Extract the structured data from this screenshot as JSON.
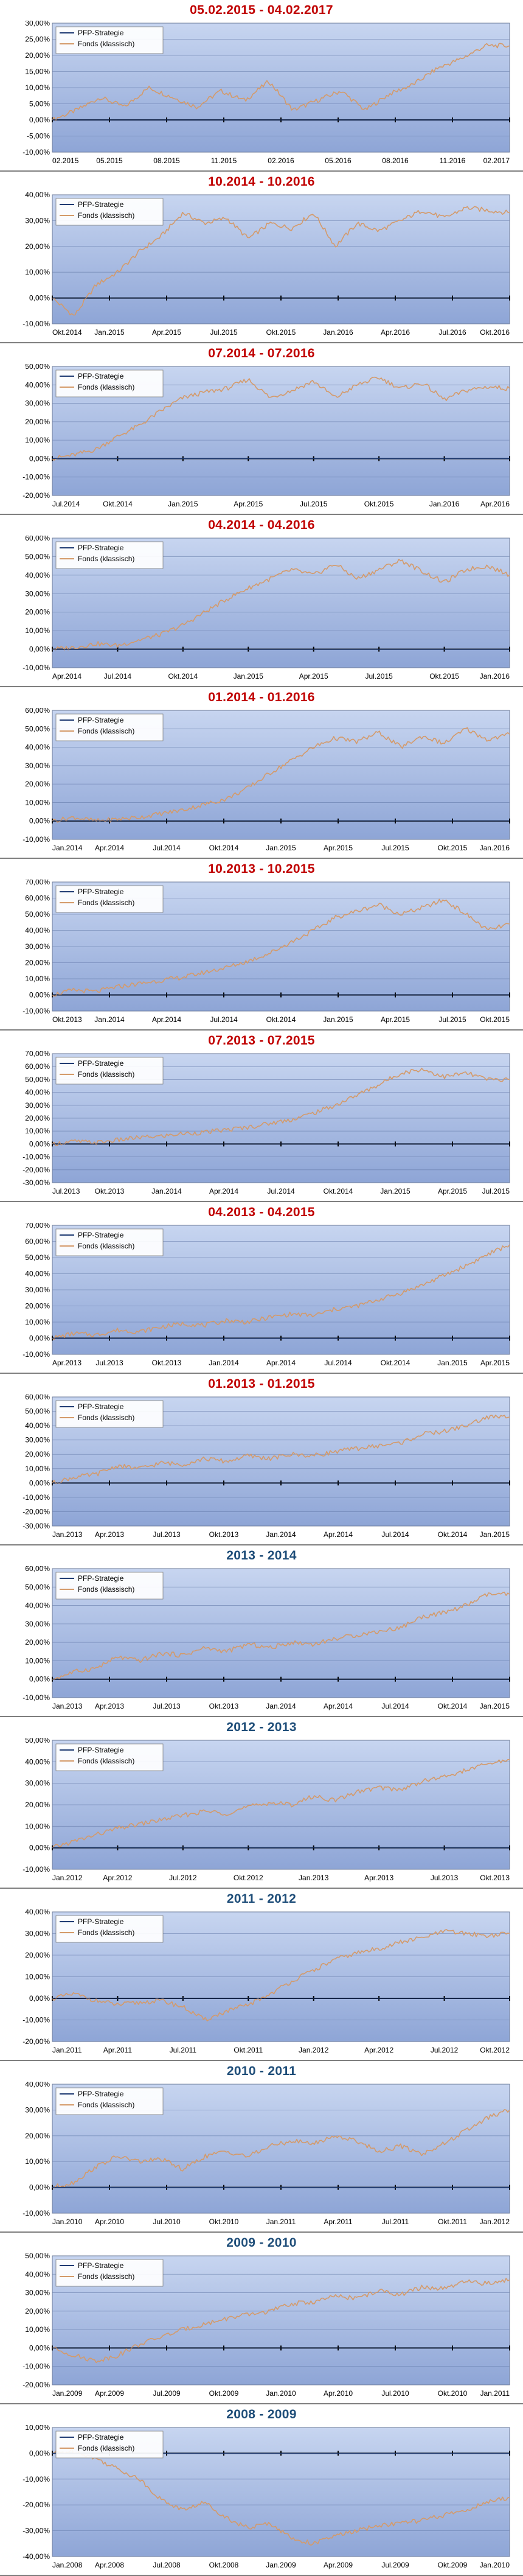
{
  "colors": {
    "title_red": "#c00000",
    "title_blue": "#1f4e79",
    "series_strategy": "#1f3b73",
    "series_fund": "#d49a6a",
    "plot_background_top": "#c7d5f0",
    "plot_background_bottom": "#8ea5d6",
    "gridline": "#5a6fa0",
    "zero_axis": "#000000"
  },
  "legend": {
    "placement": "top-left"
  },
  "chart_data": [
    {
      "type": "line",
      "title": "05.02.2015 - 04.02.2017",
      "title_color": "red",
      "ylim": [
        -10,
        30
      ],
      "ystep": 5,
      "xticks": [
        "02.2015",
        "05.2015",
        "08.2015",
        "11.2015",
        "02.2016",
        "05.2016",
        "08.2016",
        "11.2016",
        "02.2017"
      ],
      "series": [
        {
          "name": "PFP-Strategie",
          "values": [
            0,
            0,
            0,
            0,
            0,
            0,
            0,
            0,
            0
          ]
        },
        {
          "name": "Fonds (klassisch)",
          "values": [
            0,
            3,
            7,
            4,
            10,
            7,
            4,
            9,
            6,
            12,
            3,
            6,
            9,
            3,
            8,
            11,
            16,
            19,
            23,
            23
          ]
        }
      ]
    },
    {
      "type": "line",
      "title": "10.2014 - 10.2016",
      "title_color": "red",
      "ylim": [
        -10,
        40
      ],
      "ystep": 10,
      "xticks": [
        "Okt.2014",
        "Jan.2015",
        "Apr.2015",
        "Jul.2015",
        "Okt.2015",
        "Jan.2016",
        "Apr.2016",
        "Jul.2016",
        "Okt.2016"
      ],
      "series": [
        {
          "name": "PFP-Strategie",
          "values": [
            0,
            0,
            0,
            0,
            0,
            0,
            0,
            0,
            0
          ]
        },
        {
          "name": "Fonds (klassisch)",
          "values": [
            0,
            -7,
            5,
            10,
            18,
            24,
            33,
            29,
            31,
            23,
            29,
            27,
            33,
            20,
            29,
            26,
            30,
            34,
            31,
            35,
            34,
            33
          ]
        }
      ]
    },
    {
      "type": "line",
      "title": "07.2014 - 07.2016",
      "title_color": "red",
      "ylim": [
        -20,
        50
      ],
      "ystep": 10,
      "xticks": [
        "Jul.2014",
        "Okt.2014",
        "Jan.2015",
        "Apr.2015",
        "Jul.2015",
        "Okt.2015",
        "Jan.2016",
        "Apr.2016"
      ],
      "series": [
        {
          "name": "PFP-Strategie",
          "values": [
            0,
            0,
            0,
            0,
            0,
            0,
            0,
            0,
            0
          ]
        },
        {
          "name": "Fonds (klassisch)",
          "values": [
            0,
            2,
            5,
            12,
            18,
            26,
            33,
            36,
            38,
            43,
            33,
            37,
            42,
            33,
            40,
            44,
            38,
            41,
            32,
            37,
            39,
            38
          ]
        }
      ]
    },
    {
      "type": "line",
      "title": "04.2014 - 04.2016",
      "title_color": "red",
      "ylim": [
        -10,
        60
      ],
      "ystep": 10,
      "xticks": [
        "Apr.2014",
        "Jul.2014",
        "Okt.2014",
        "Jan.2015",
        "Apr.2015",
        "Jul.2015",
        "Okt.2015",
        "Jan.2016"
      ],
      "series": [
        {
          "name": "PFP-Strategie",
          "values": [
            0,
            0,
            0,
            0,
            0,
            0,
            0,
            0,
            0
          ]
        },
        {
          "name": "Fonds (klassisch)",
          "values": [
            0,
            1,
            3,
            2,
            5,
            8,
            13,
            20,
            27,
            33,
            38,
            43,
            40,
            46,
            38,
            43,
            48,
            42,
            36,
            43,
            45,
            40
          ]
        }
      ]
    },
    {
      "type": "line",
      "title": "01.2014 - 01.2016",
      "title_color": "red",
      "ylim": [
        -10,
        60
      ],
      "ystep": 10,
      "xticks": [
        "Jan.2014",
        "Apr.2014",
        "Jul.2014",
        "Okt.2014",
        "Jan.2015",
        "Apr.2015",
        "Jul.2015",
        "Okt.2015",
        "Jan.2016"
      ],
      "series": [
        {
          "name": "PFP-Strategie",
          "values": [
            0,
            0,
            0,
            0,
            0,
            0,
            0,
            0,
            0
          ]
        },
        {
          "name": "Fonds (klassisch)",
          "values": [
            0,
            2,
            0,
            1,
            2,
            4,
            6,
            9,
            12,
            18,
            26,
            33,
            40,
            45,
            43,
            48,
            40,
            46,
            42,
            50,
            44,
            47
          ]
        }
      ]
    },
    {
      "type": "line",
      "title": "10.2013 - 10.2015",
      "title_color": "red",
      "ylim": [
        -10,
        70
      ],
      "ystep": 10,
      "xticks": [
        "Okt.2013",
        "Jan.2014",
        "Apr.2014",
        "Jul.2014",
        "Okt.2014",
        "Jan.2015",
        "Apr.2015",
        "Jul.2015",
        "Okt.2015"
      ],
      "series": [
        {
          "name": "PFP-Strategie",
          "values": [
            0,
            0,
            0,
            0,
            0,
            0,
            0,
            0,
            0
          ]
        },
        {
          "name": "Fonds (klassisch)",
          "values": [
            0,
            3,
            2,
            5,
            7,
            9,
            11,
            14,
            17,
            21,
            26,
            33,
            40,
            48,
            52,
            56,
            50,
            54,
            59,
            50,
            40,
            44
          ]
        }
      ]
    },
    {
      "type": "line",
      "title": "07.2013 - 07.2015",
      "title_color": "red",
      "ylim": [
        -30,
        70
      ],
      "ystep": 10,
      "xticks": [
        "Jul.2013",
        "Okt.2013",
        "Jan.2014",
        "Apr.2014",
        "Jul.2014",
        "Okt.2014",
        "Jan.2015",
        "Apr.2015",
        "Jul.2015"
      ],
      "series": [
        {
          "name": "PFP-Strategie",
          "values": [
            0,
            0,
            0,
            0,
            0,
            0,
            0,
            0,
            0
          ]
        },
        {
          "name": "Fonds (klassisch)",
          "values": [
            0,
            2,
            1,
            3,
            5,
            6,
            8,
            9,
            11,
            13,
            16,
            19,
            24,
            30,
            38,
            46,
            55,
            58,
            52,
            55,
            50,
            50
          ]
        }
      ]
    },
    {
      "type": "line",
      "title": "04.2013 - 04.2015",
      "title_color": "red",
      "ylim": [
        -10,
        70
      ],
      "ystep": 10,
      "xticks": [
        "Apr.2013",
        "Jul.2013",
        "Okt.2013",
        "Jan.2014",
        "Apr.2014",
        "Jul.2014",
        "Okt.2014",
        "Jan.2015",
        "Apr.2015"
      ],
      "series": [
        {
          "name": "PFP-Strategie",
          "values": [
            0,
            0,
            0,
            0,
            0,
            0,
            0,
            0,
            0
          ]
        },
        {
          "name": "Fonds (klassisch)",
          "values": [
            0,
            3,
            2,
            5,
            4,
            7,
            9,
            8,
            11,
            10,
            13,
            15,
            14,
            18,
            20,
            24,
            28,
            33,
            39,
            45,
            52,
            58
          ]
        }
      ]
    },
    {
      "type": "line",
      "title": "01.2013 - 01.2015",
      "title_color": "red",
      "ylim": [
        -30,
        60
      ],
      "ystep": 10,
      "xticks": [
        "Jan.2013",
        "Apr.2013",
        "Jul.2013",
        "Okt.2013",
        "Jan.2014",
        "Apr.2014",
        "Jul.2014",
        "Okt.2014",
        "Jan.2015"
      ],
      "series": [
        {
          "name": "PFP-Strategie",
          "values": [
            0,
            0,
            0,
            0,
            0,
            0,
            0,
            0,
            0
          ]
        },
        {
          "name": "Fonds (klassisch)",
          "values": [
            0,
            4,
            6,
            12,
            10,
            14,
            13,
            17,
            15,
            19,
            17,
            20,
            19,
            22,
            24,
            26,
            28,
            34,
            36,
            40,
            46,
            46
          ]
        }
      ]
    },
    {
      "type": "line",
      "title": "2013 - 2014",
      "title_color": "blue",
      "ylim": [
        -10,
        60
      ],
      "ystep": 10,
      "xticks": [
        "Jan.2013",
        "Apr.2013",
        "Jul.2013",
        "Okt.2013",
        "Jan.2014",
        "Apr.2014",
        "Jul.2014",
        "Okt.2014",
        "Jan.2015"
      ],
      "series": [
        {
          "name": "PFP-Strategie",
          "values": [
            0,
            0,
            0,
            0,
            0,
            0,
            0,
            0,
            0
          ]
        },
        {
          "name": "Fonds (klassisch)",
          "values": [
            0,
            4,
            6,
            12,
            10,
            14,
            13,
            17,
            15,
            19,
            17,
            20,
            19,
            22,
            24,
            26,
            28,
            34,
            36,
            40,
            46,
            46
          ]
        }
      ]
    },
    {
      "type": "line",
      "title": "2012 - 2013",
      "title_color": "blue",
      "ylim": [
        -10,
        50
      ],
      "ystep": 10,
      "xticks": [
        "Jan.2012",
        "Apr.2012",
        "Jul.2012",
        "Okt.2012",
        "Jan.2013",
        "Apr.2013",
        "Jul.2013",
        "Okt.2013"
      ],
      "series": [
        {
          "name": "PFP-Strategie",
          "values": [
            0,
            0,
            0,
            0,
            0,
            0,
            0,
            0,
            0
          ]
        },
        {
          "name": "Fonds (klassisch)",
          "values": [
            0,
            3,
            6,
            9,
            11,
            13,
            15,
            17,
            16,
            19,
            21,
            20,
            24,
            22,
            26,
            28,
            27,
            31,
            33,
            36,
            39,
            41
          ]
        }
      ]
    },
    {
      "type": "line",
      "title": "2011 - 2012",
      "title_color": "blue",
      "ylim": [
        -20,
        40
      ],
      "ystep": 10,
      "xticks": [
        "Jan.2011",
        "Apr.2011",
        "Jul.2011",
        "Okt.2011",
        "Jan.2012",
        "Apr.2012",
        "Jul.2012",
        "Okt.2012"
      ],
      "series": [
        {
          "name": "PFP-Strategie",
          "values": [
            0,
            0,
            0,
            0,
            0,
            0,
            0,
            0,
            0
          ]
        },
        {
          "name": "Fonds (klassisch)",
          "values": [
            0,
            2,
            -1,
            -3,
            -2,
            -1,
            -4,
            -10,
            -6,
            -3,
            2,
            8,
            13,
            18,
            21,
            23,
            26,
            28,
            31,
            30,
            29,
            30
          ]
        }
      ]
    },
    {
      "type": "line",
      "title": "2010 - 2011",
      "title_color": "blue",
      "ylim": [
        -10,
        40
      ],
      "ystep": 10,
      "xticks": [
        "Jan.2010",
        "Apr.2010",
        "Jul.2010",
        "Okt.2010",
        "Jan.2011",
        "Apr.2011",
        "Jul.2011",
        "Okt.2011",
        "Jan.2012"
      ],
      "series": [
        {
          "name": "PFP-Strategie",
          "values": [
            0,
            0,
            0,
            0,
            0,
            0,
            0,
            0,
            0
          ]
        },
        {
          "name": "Fonds (klassisch)",
          "values": [
            0,
            2,
            8,
            12,
            10,
            11,
            7,
            12,
            14,
            12,
            16,
            18,
            17,
            20,
            18,
            14,
            16,
            13,
            17,
            22,
            27,
            30
          ]
        }
      ]
    },
    {
      "type": "line",
      "title": "2009 - 2010",
      "title_color": "blue",
      "ylim": [
        -20,
        50
      ],
      "ystep": 10,
      "xticks": [
        "Jan.2009",
        "Apr.2009",
        "Jul.2009",
        "Okt.2009",
        "Jan.2010",
        "Apr.2010",
        "Jul.2010",
        "Okt.2010",
        "Jan.2011"
      ],
      "series": [
        {
          "name": "PFP-Strategie",
          "values": [
            0,
            0,
            0,
            0,
            0,
            0,
            0,
            0,
            0
          ]
        },
        {
          "name": "Fonds (klassisch)",
          "values": [
            0,
            -4,
            -7,
            -4,
            2,
            6,
            10,
            13,
            16,
            18,
            20,
            24,
            25,
            28,
            27,
            31,
            29,
            33,
            32,
            36,
            35,
            37
          ]
        }
      ]
    },
    {
      "type": "line",
      "title": "2008 - 2009",
      "title_color": "blue",
      "ylim": [
        -40,
        10
      ],
      "ystep": 10,
      "xticks": [
        "Jan.2008",
        "Apr.2008",
        "Jul.2008",
        "Okt.2008",
        "Jan.2009",
        "Apr.2009",
        "Jul.2009",
        "Okt.2009",
        "Jan.2010"
      ],
      "series": [
        {
          "name": "PFP-Strategie",
          "values": [
            0,
            0,
            0,
            0,
            0,
            0,
            0,
            0,
            0
          ]
        },
        {
          "name": "Fonds (klassisch)",
          "values": [
            0,
            1,
            -2,
            -6,
            -10,
            -18,
            -22,
            -19,
            -25,
            -29,
            -27,
            -33,
            -35,
            -32,
            -30,
            -28,
            -27,
            -26,
            -24,
            -22,
            -19,
            -17
          ]
        }
      ]
    }
  ]
}
